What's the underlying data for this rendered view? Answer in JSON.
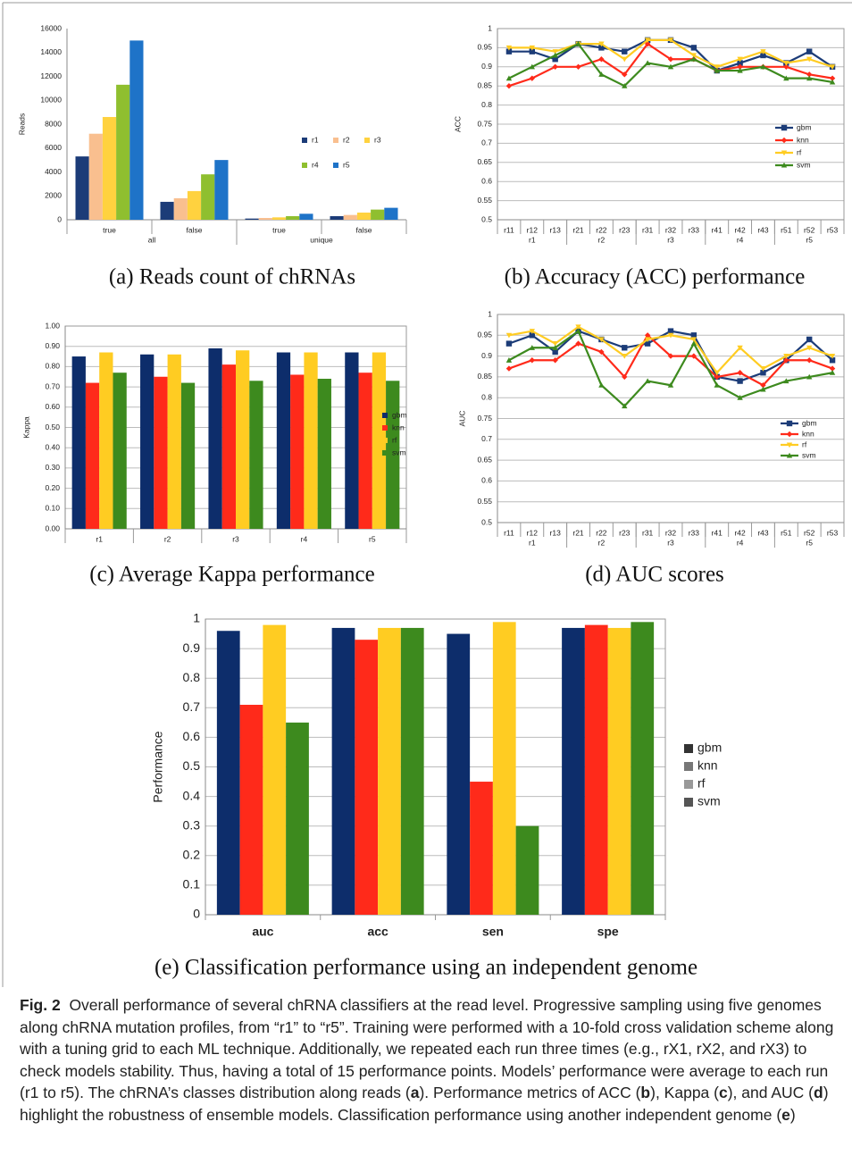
{
  "chart_data": [
    {
      "type": "bar",
      "subcaption": "(a) Reads count of chRNAs",
      "ylabel": "Reads",
      "categories": [
        "true",
        "false",
        "true",
        "false"
      ],
      "groups": [
        "all",
        "unique"
      ],
      "series": [
        {
          "name": "r1",
          "color": "#1c3c78",
          "values": [
            5300,
            1500,
            100,
            300
          ]
        },
        {
          "name": "r2",
          "color": "#f9bf8f",
          "values": [
            7200,
            1800,
            150,
            400
          ]
        },
        {
          "name": "r3",
          "color": "#ffd23f",
          "values": [
            8600,
            2400,
            200,
            600
          ]
        },
        {
          "name": "r4",
          "color": "#8fbf2f",
          "values": [
            11300,
            3800,
            300,
            850
          ]
        },
        {
          "name": "r5",
          "color": "#1e73c8",
          "values": [
            15000,
            5000,
            500,
            1000
          ]
        }
      ],
      "ylim": [
        0,
        16000
      ],
      "yticks": [
        0,
        2000,
        4000,
        6000,
        8000,
        10000,
        12000,
        14000,
        16000
      ],
      "grid": false
    },
    {
      "type": "line",
      "subcaption": "(b) Accuracy (ACC) performance",
      "ylabel": "ACC",
      "categories": [
        "r11",
        "r12",
        "r13",
        "r21",
        "r22",
        "r23",
        "r31",
        "r32",
        "r33",
        "r41",
        "r42",
        "r43",
        "r51",
        "r52",
        "r53"
      ],
      "groups": [
        "r1",
        "r2",
        "r3",
        "r4",
        "r5"
      ],
      "series": [
        {
          "name": "gbm",
          "color": "#1c3c78",
          "marker": "square",
          "values": [
            0.94,
            0.94,
            0.92,
            0.96,
            0.95,
            0.94,
            0.97,
            0.97,
            0.95,
            0.89,
            0.91,
            0.93,
            0.91,
            0.94,
            0.9
          ]
        },
        {
          "name": "knn",
          "color": "#ff2a1a",
          "marker": "diamond",
          "values": [
            0.85,
            0.87,
            0.9,
            0.9,
            0.92,
            0.88,
            0.96,
            0.92,
            0.92,
            0.89,
            0.9,
            0.9,
            0.9,
            0.88,
            0.87
          ]
        },
        {
          "name": "rf",
          "color": "#ffcc22",
          "marker": "triangle-down",
          "values": [
            0.95,
            0.95,
            0.94,
            0.96,
            0.96,
            0.92,
            0.97,
            0.97,
            0.93,
            0.9,
            0.92,
            0.94,
            0.91,
            0.92,
            0.9
          ]
        },
        {
          "name": "svm",
          "color": "#3d8a1e",
          "marker": "triangle",
          "values": [
            0.87,
            0.9,
            0.93,
            0.96,
            0.88,
            0.85,
            0.91,
            0.9,
            0.92,
            0.89,
            0.89,
            0.9,
            0.87,
            0.87,
            0.86
          ]
        }
      ],
      "ylim": [
        0.5,
        1
      ],
      "yticks": [
        0.5,
        0.55,
        0.6,
        0.65,
        0.7,
        0.75,
        0.8,
        0.85,
        0.9,
        0.95,
        1
      ],
      "grid": true
    },
    {
      "type": "bar",
      "subcaption": "(c) Average Kappa performance",
      "ylabel": "Kappa",
      "categories": [
        "r1",
        "r2",
        "r3",
        "r4",
        "r5"
      ],
      "series": [
        {
          "name": "gbm",
          "color": "#0d2d6b",
          "values": [
            0.85,
            0.86,
            0.89,
            0.87,
            0.87
          ]
        },
        {
          "name": "knn",
          "color": "#ff2a1a",
          "values": [
            0.72,
            0.75,
            0.81,
            0.76,
            0.77
          ]
        },
        {
          "name": "rf",
          "color": "#ffcc22",
          "values": [
            0.87,
            0.86,
            0.88,
            0.87,
            0.87
          ]
        },
        {
          "name": "svm",
          "color": "#3d8a1e",
          "values": [
            0.77,
            0.72,
            0.73,
            0.74,
            0.73
          ]
        }
      ],
      "ylim": [
        0,
        1
      ],
      "yticks": [
        {
          "value": 0,
          "label": "0.00"
        },
        {
          "value": 0.1,
          "label": "0.10"
        },
        {
          "value": 0.2,
          "label": "0.20"
        },
        {
          "value": 0.3,
          "label": "0.30"
        },
        {
          "value": 0.4,
          "label": "0.40"
        },
        {
          "value": 0.5,
          "label": "0.50"
        },
        {
          "value": 0.6,
          "label": "0.60"
        },
        {
          "value": 0.7,
          "label": "0.70"
        },
        {
          "value": 0.8,
          "label": "0.80"
        },
        {
          "value": 0.9,
          "label": "0.90"
        },
        {
          "value": 1,
          "label": "1.00"
        }
      ],
      "grid": true
    },
    {
      "type": "line",
      "subcaption": "(d) AUC scores",
      "ylabel": "AUC",
      "categories": [
        "r11",
        "r12",
        "r13",
        "r21",
        "r22",
        "r23",
        "r31",
        "r32",
        "r33",
        "r41",
        "r42",
        "r43",
        "r51",
        "r52",
        "r53"
      ],
      "groups": [
        "r1",
        "r2",
        "r3",
        "r4",
        "r5"
      ],
      "series": [
        {
          "name": "gbm",
          "color": "#1c3c78",
          "marker": "square",
          "values": [
            0.93,
            0.95,
            0.91,
            0.96,
            0.94,
            0.92,
            0.93,
            0.96,
            0.95,
            0.85,
            0.84,
            0.86,
            0.89,
            0.94,
            0.89
          ]
        },
        {
          "name": "knn",
          "color": "#ff2a1a",
          "marker": "diamond",
          "values": [
            0.87,
            0.89,
            0.89,
            0.93,
            0.91,
            0.85,
            0.95,
            0.9,
            0.9,
            0.85,
            0.86,
            0.83,
            0.89,
            0.89,
            0.87
          ]
        },
        {
          "name": "rf",
          "color": "#ffcc22",
          "marker": "triangle-down",
          "values": [
            0.95,
            0.96,
            0.93,
            0.97,
            0.94,
            0.9,
            0.94,
            0.95,
            0.94,
            0.86,
            0.92,
            0.87,
            0.9,
            0.92,
            0.9
          ]
        },
        {
          "name": "svm",
          "color": "#3d8a1e",
          "marker": "triangle",
          "values": [
            0.89,
            0.92,
            0.92,
            0.96,
            0.83,
            0.78,
            0.84,
            0.83,
            0.93,
            0.83,
            0.8,
            0.82,
            0.84,
            0.85,
            0.86
          ]
        }
      ],
      "ylim": [
        0.5,
        1
      ],
      "yticks": [
        0.5,
        0.55,
        0.6,
        0.65,
        0.7,
        0.75,
        0.8,
        0.85,
        0.9,
        0.95,
        1
      ],
      "grid": true
    },
    {
      "type": "bar",
      "subcaption": "(e) Classification performance using an independent genome",
      "ylabel": "Performance",
      "categories": [
        "auc",
        "acc",
        "sen",
        "spe"
      ],
      "series": [
        {
          "name": "gbm",
          "color": "#0d2d6b",
          "legend_color": "#333333",
          "values": [
            0.96,
            0.97,
            0.95,
            0.97
          ]
        },
        {
          "name": "knn",
          "color": "#ff2a1a",
          "legend_color": "#777777",
          "values": [
            0.71,
            0.93,
            0.45,
            0.98
          ]
        },
        {
          "name": "rf",
          "color": "#ffcc22",
          "legend_color": "#999999",
          "values": [
            0.98,
            0.97,
            0.99,
            0.97
          ]
        },
        {
          "name": "svm",
          "color": "#3d8a1e",
          "legend_color": "#555555",
          "values": [
            0.65,
            0.97,
            0.3,
            0.99
          ]
        }
      ],
      "ylim": [
        0,
        1
      ],
      "yticks": [
        0,
        0.1,
        0.2,
        0.3,
        0.4,
        0.5,
        0.6,
        0.7,
        0.8,
        0.9,
        1
      ],
      "grid": true
    }
  ],
  "caption": {
    "label": "Fig. 2",
    "parts": [
      "Overall performance of several chRNA classifiers at the read level. Progressive sampling using five genomes along chRNA mutation profiles, from “r1” to “r5”. Training were performed with a 10-fold cross validation scheme along with a tuning grid to each ML technique. Additionally, we repeated each run three times (e.g., rX1, rX2, and rX3) to check models stability. Thus, having a total of 15 performance points. Models’ performance were average to each run (r1 to r5). The chRNA’s classes distribution along reads (",
      "a",
      "). Performance metrics of ACC (",
      "b",
      "), Kappa (",
      "c",
      "), and AUC (",
      "d",
      ") highlight the robustness of ensemble models. Classification performance using another independent genome (",
      "e",
      ")"
    ]
  }
}
